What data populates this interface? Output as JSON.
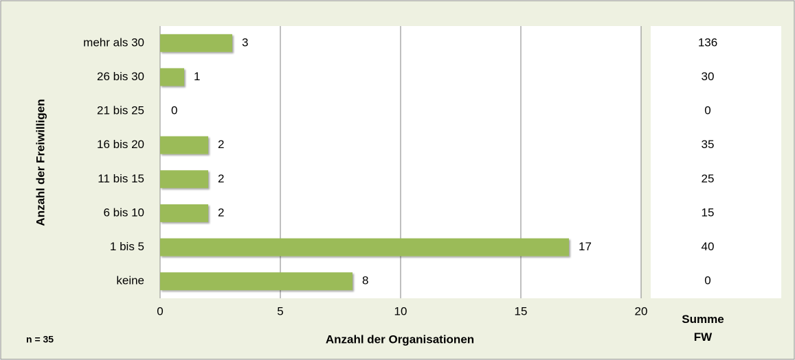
{
  "chart_data": {
    "type": "bar",
    "orientation": "horizontal",
    "y_label": "Anzahl der Freiwilligen",
    "x_label": "Anzahl der Organisationen",
    "annotation": "n = 35",
    "categories": [
      "mehr als 30",
      "26 bis 30",
      "21 bis 25",
      "16 bis 20",
      "11 bis 15",
      "6 bis 10",
      "1 bis 5",
      "keine"
    ],
    "values": [
      3,
      1,
      0,
      2,
      2,
      2,
      17,
      8
    ],
    "color": "#9bbb59",
    "xlim": [
      0,
      20
    ],
    "xticks": [
      0,
      5,
      10,
      15,
      20
    ],
    "grid": true,
    "side_header": "Summe FW",
    "side_values": [
      136,
      30,
      0,
      35,
      25,
      15,
      40,
      0
    ]
  }
}
